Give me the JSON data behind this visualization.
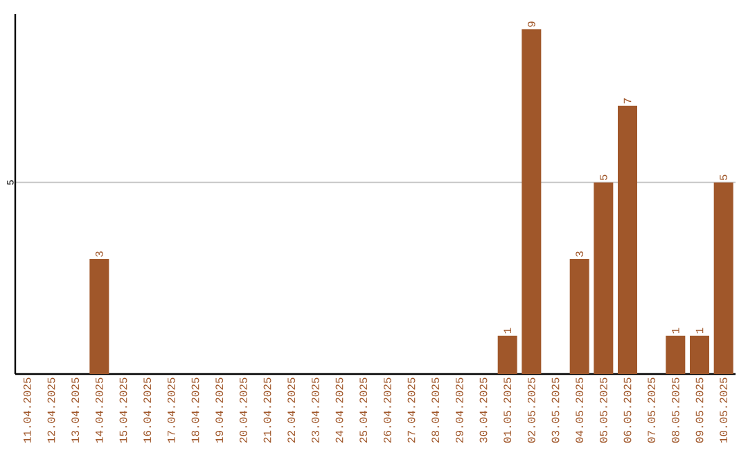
{
  "chart_data": {
    "type": "bar",
    "categories": [
      "11.04.2025",
      "12.04.2025",
      "13.04.2025",
      "14.04.2025",
      "15.04.2025",
      "16.04.2025",
      "17.04.2025",
      "18.04.2025",
      "19.04.2025",
      "20.04.2025",
      "21.04.2025",
      "22.04.2025",
      "23.04.2025",
      "24.04.2025",
      "25.04.2025",
      "26.04.2025",
      "27.04.2025",
      "28.04.2025",
      "29.04.2025",
      "30.04.2025",
      "01.05.2025",
      "02.05.2025",
      "03.05.2025",
      "04.05.2025",
      "05.05.2025",
      "06.05.2025",
      "07.05.2025",
      "08.05.2025",
      "09.05.2025",
      "10.05.2025"
    ],
    "values": [
      0,
      0,
      0,
      3,
      0,
      0,
      0,
      0,
      0,
      0,
      0,
      0,
      0,
      0,
      0,
      0,
      0,
      0,
      0,
      0,
      1,
      9,
      0,
      3,
      5,
      7,
      0,
      1,
      1,
      5
    ],
    "value_labels": [
      null,
      null,
      null,
      "3",
      null,
      null,
      null,
      null,
      null,
      null,
      null,
      null,
      null,
      null,
      null,
      null,
      null,
      null,
      null,
      null,
      "1",
      "9",
      null,
      "3",
      "5",
      "7",
      null,
      "1",
      "1",
      "5"
    ],
    "color": "#a0572a",
    "ylim": [
      0,
      9.4
    ],
    "yticks": [
      5
    ],
    "grid": "y"
  }
}
